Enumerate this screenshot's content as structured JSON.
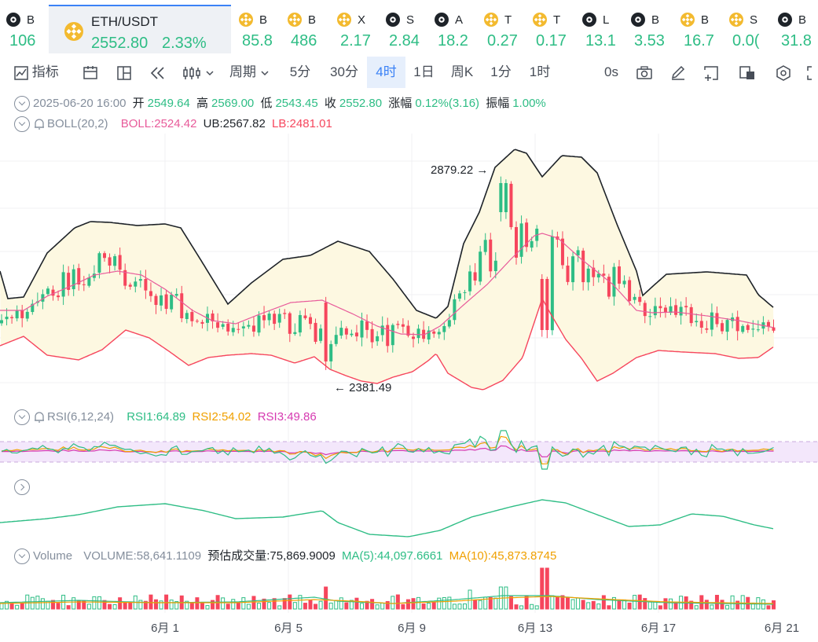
{
  "tickers": [
    {
      "symbol": "B",
      "price": "106",
      "icon": "btc-icon"
    },
    {
      "symbol": "ETH/USDT",
      "price": "2552.80",
      "change": "2.33%",
      "icon": "binance-icon",
      "active": true
    },
    {
      "symbol": "B",
      "price": "85.8",
      "icon": "binance-icon"
    },
    {
      "symbol": "B",
      "price": "486",
      "icon": "binance-icon"
    },
    {
      "symbol": "X",
      "price": "2.17",
      "icon": "binance-icon"
    },
    {
      "symbol": "S",
      "price": "2.84",
      "icon": "btc-icon"
    },
    {
      "symbol": "A",
      "price": "18.2",
      "icon": "btc-icon"
    },
    {
      "symbol": "T",
      "price": "0.27",
      "icon": "binance-icon"
    },
    {
      "symbol": "T",
      "price": "0.17",
      "icon": "binance-icon"
    },
    {
      "symbol": "L",
      "price": "13.1",
      "icon": "btc-icon"
    },
    {
      "symbol": "B",
      "price": "3.53",
      "icon": "btc-icon"
    },
    {
      "symbol": "B",
      "price": "16.7",
      "icon": "binance-icon"
    },
    {
      "symbol": "S",
      "price": "0.0(",
      "icon": "binance-icon"
    },
    {
      "symbol": "B",
      "price": "31.8",
      "icon": "btc-icon"
    }
  ],
  "toolbar": {
    "indicators": "指标",
    "period": "周期",
    "intervals": [
      "5分",
      "30分",
      "4时",
      "1日",
      "周K",
      "1分",
      "1时"
    ],
    "active_interval": "4时",
    "countdown": "0s"
  },
  "ohlc": {
    "date": "2025-06-20 16:00",
    "open_label": "开",
    "open": "2549.64",
    "high_label": "高",
    "high": "2569.00",
    "low_label": "低",
    "low": "2543.45",
    "close_label": "收",
    "close": "2552.80",
    "change_label": "涨幅",
    "change": "0.12%(3.16)",
    "amp_label": "振幅",
    "amp": "1.00%"
  },
  "boll": {
    "name": "BOLL(20,2)",
    "boll": "BOLL:2524.42",
    "ub": "UB:2567.82",
    "lb": "LB:2481.01",
    "high_marker": "2879.22",
    "low_marker": "2381.49"
  },
  "rsi": {
    "name": "RSI(6,12,24)",
    "rsi1": "RSI1:64.89",
    "rsi2": "RSI2:54.02",
    "rsi3": "RSI3:49.86"
  },
  "volume": {
    "name": "Volume",
    "volume": "VOLUME:58,641.1109",
    "estimate": "预估成交量:75,869.9009",
    "ma5": "MA(5):44,097.6661",
    "ma10": "MA(10):45,873.8745"
  },
  "x_axis": [
    "6月 1",
    "6月 5",
    "6月 9",
    "6月 13",
    "6月 17",
    "6月 21"
  ],
  "colors": {
    "up": "#2ebd85",
    "down": "#f6465d",
    "boll_mid": "#e85b9a",
    "boll_band": "#1e2329",
    "rsi1": "#2ebd85",
    "rsi2": "#f0a000",
    "rsi3": "#d63ab1",
    "accent": "#3b82f6"
  }
}
